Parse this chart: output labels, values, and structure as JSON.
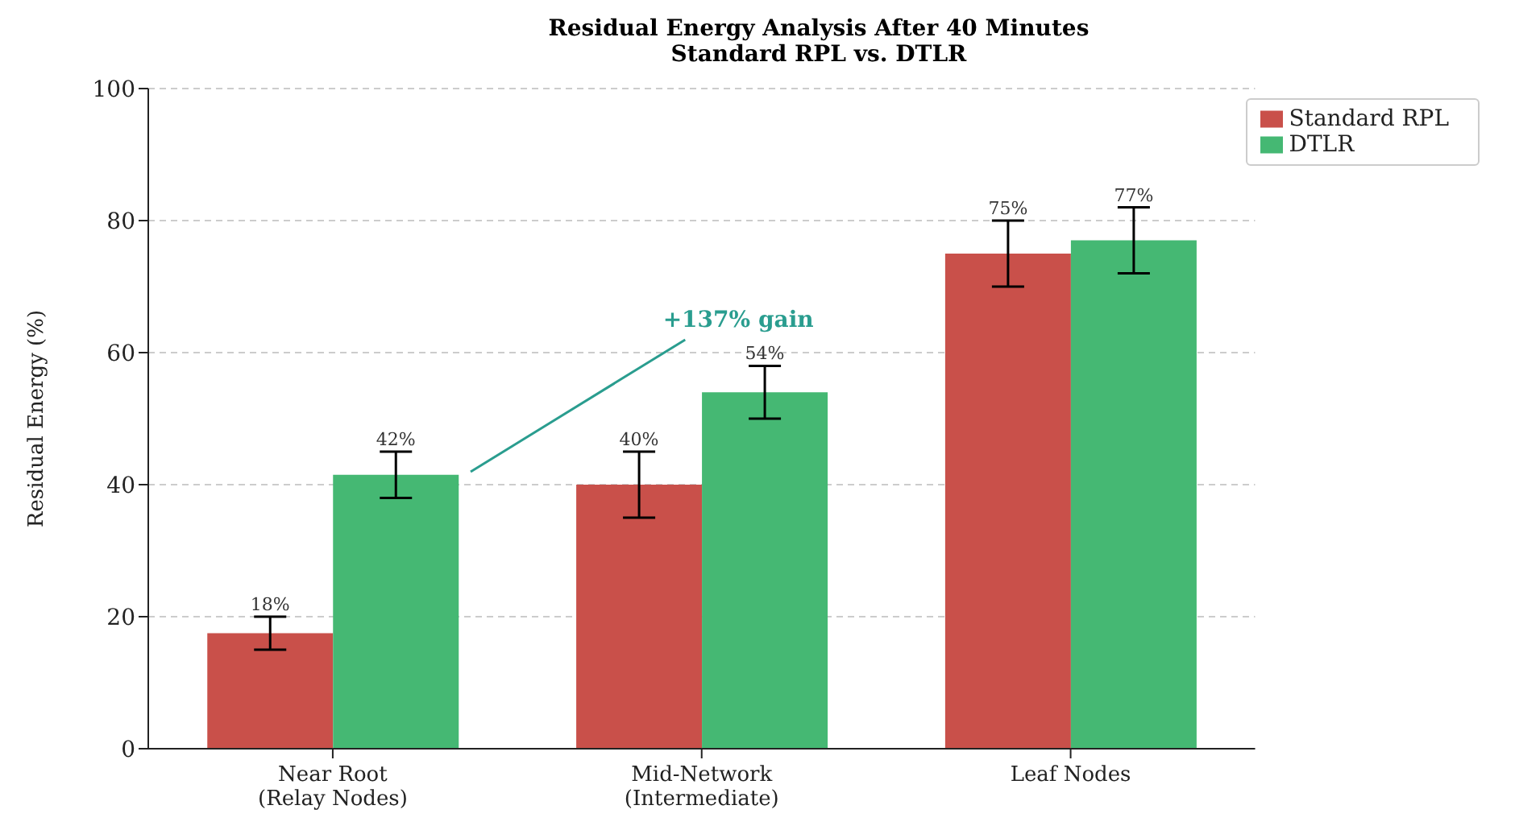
{
  "chart_data": {
    "type": "bar",
    "title": "Residual Energy Analysis After 40 Minutes\nStandard RPL vs. DTLR",
    "ylabel": "Residual Energy (%)",
    "categories": [
      "Near Root\n(Relay Nodes)",
      "Mid-Network\n(Intermediate)",
      "Leaf Nodes"
    ],
    "series": [
      {
        "name": "Standard RPL",
        "color": "#c9504a",
        "values": [
          17.5,
          40,
          75
        ],
        "errors": [
          2.5,
          5,
          5
        ],
        "value_labels": [
          "18%",
          "40%",
          "75%"
        ]
      },
      {
        "name": "DTLR",
        "color": "#45b873",
        "values": [
          41.5,
          54,
          77
        ],
        "errors": [
          3.5,
          4,
          5
        ],
        "value_labels": [
          "42%",
          "54%",
          "77%"
        ]
      }
    ],
    "annotations": [
      "+137% gain"
    ],
    "ylim": [
      0,
      100
    ],
    "yticks": [
      0,
      20,
      40,
      60,
      80,
      100
    ],
    "grid": "y",
    "legend": "top right"
  }
}
